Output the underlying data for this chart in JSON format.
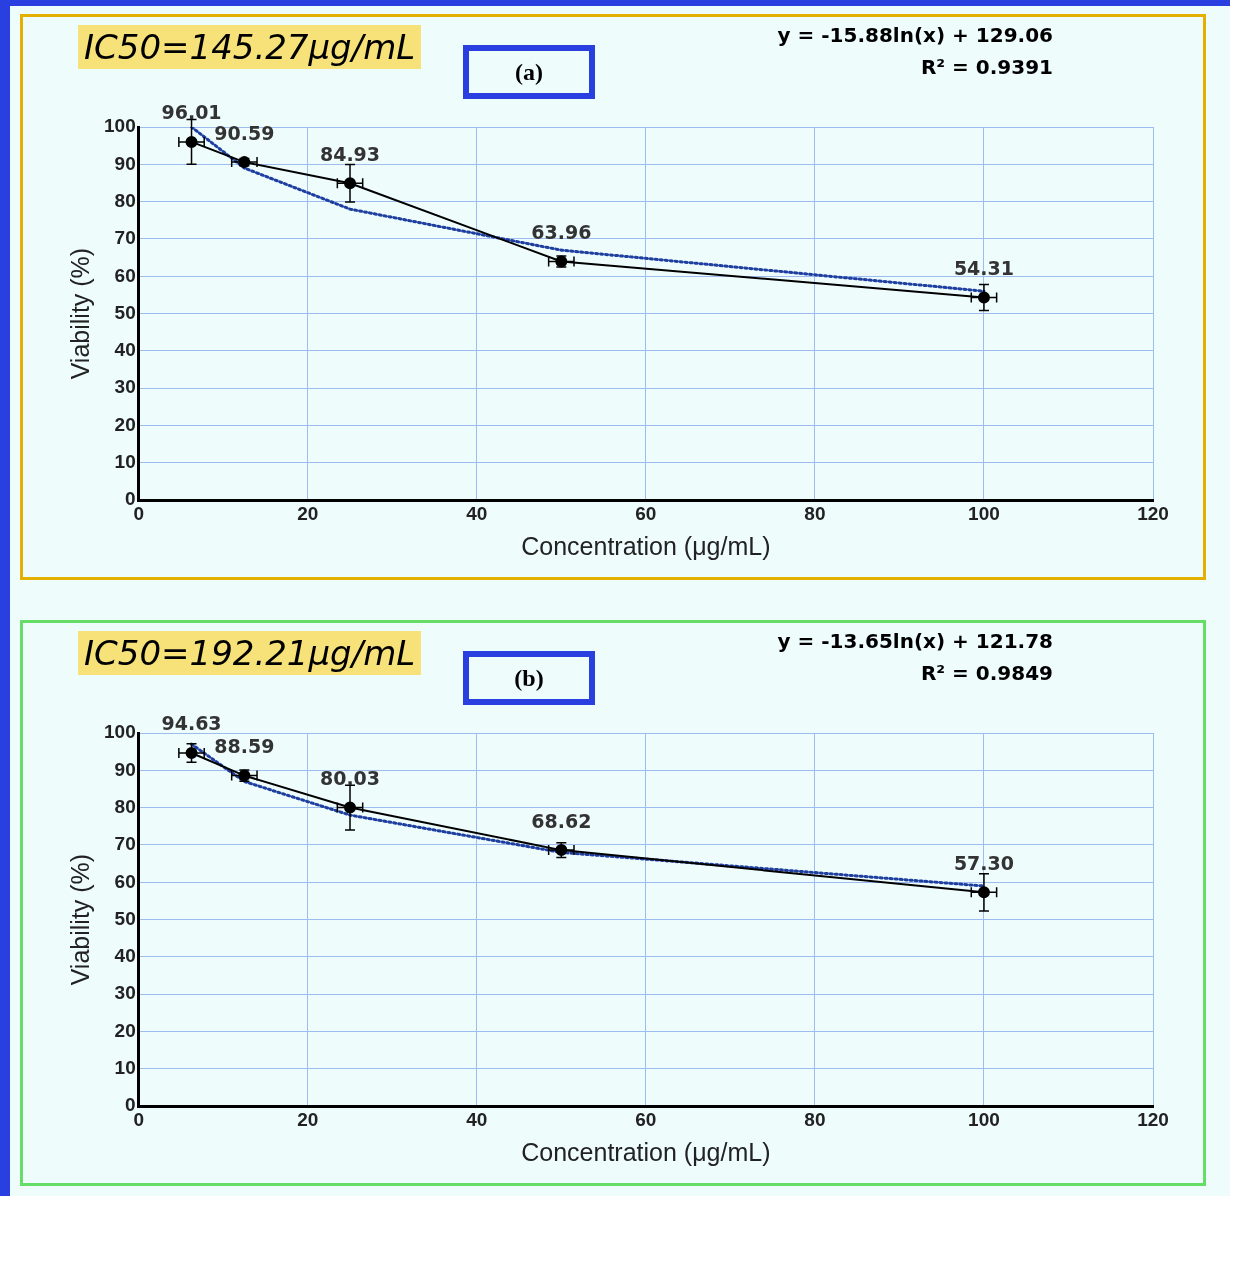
{
  "chart_data": [
    {
      "type": "line",
      "xlabel": "Concentration (μg/mL)",
      "ylabel": "Viability (%)",
      "annotations": [
        "IC50=145.27μg/mL",
        "(a)",
        "y = -15.88ln(x) + 129.06",
        "R² = 0.9391"
      ],
      "xlim": [
        0,
        120
      ],
      "xticks": [
        0,
        20,
        40,
        60,
        80,
        100,
        120
      ],
      "ylim": [
        0,
        100
      ],
      "yticks": [
        0,
        10,
        20,
        30,
        40,
        50,
        60,
        70,
        80,
        90,
        100
      ],
      "grid": true,
      "legend": false,
      "series": [
        {
          "color": "#000000",
          "marker": "circle",
          "line_style": "solid",
          "x": [
            6.25,
            12.5,
            25,
            50,
            100
          ],
          "values": [
            96.01,
            90.59,
            84.93,
            63.96,
            54.31
          ],
          "value_labels": [
            "96.01",
            "90.59",
            "84.93",
            "63.96",
            "54.31"
          ],
          "errors": [
            6,
            1,
            5,
            1.5,
            3.5
          ],
          "xerrors": [
            1.5,
            1.5,
            1.5,
            1.5,
            1.5
          ]
        },
        {
          "color": "#1f3fa0",
          "marker": "none",
          "line_style": "dotted",
          "x": [
            6.25,
            12.5,
            25,
            50,
            100
          ],
          "values": [
            100,
            89,
            78,
            67,
            56
          ]
        }
      ]
    },
    {
      "type": "line",
      "xlabel": "Concentration (μg/mL)",
      "ylabel": "Viability (%)",
      "annotations": [
        "IC50=192.21μg/mL",
        "(b)",
        "y = -13.65ln(x) + 121.78",
        "R² = 0.9849"
      ],
      "xlim": [
        0,
        120
      ],
      "xticks": [
        0,
        20,
        40,
        60,
        80,
        100,
        120
      ],
      "ylim": [
        0,
        100
      ],
      "yticks": [
        0,
        10,
        20,
        30,
        40,
        50,
        60,
        70,
        80,
        90,
        100
      ],
      "grid": true,
      "legend": false,
      "series": [
        {
          "color": "#000000",
          "marker": "circle",
          "line_style": "solid",
          "x": [
            6.25,
            12.5,
            25,
            50,
            100
          ],
          "values": [
            94.63,
            88.59,
            80.03,
            68.62,
            57.3
          ],
          "value_labels": [
            "94.63",
            "88.59",
            "80.03",
            "68.62",
            "57.30"
          ],
          "errors": [
            2.5,
            1.5,
            6,
            2,
            5
          ],
          "xerrors": [
            1.5,
            1.5,
            1.5,
            1.5,
            1.5
          ]
        },
        {
          "color": "#1f3fa0",
          "marker": "none",
          "line_style": "dotted",
          "x": [
            6.25,
            12.5,
            25,
            50,
            100
          ],
          "values": [
            97,
            87,
            78,
            68,
            59
          ]
        }
      ]
    }
  ]
}
